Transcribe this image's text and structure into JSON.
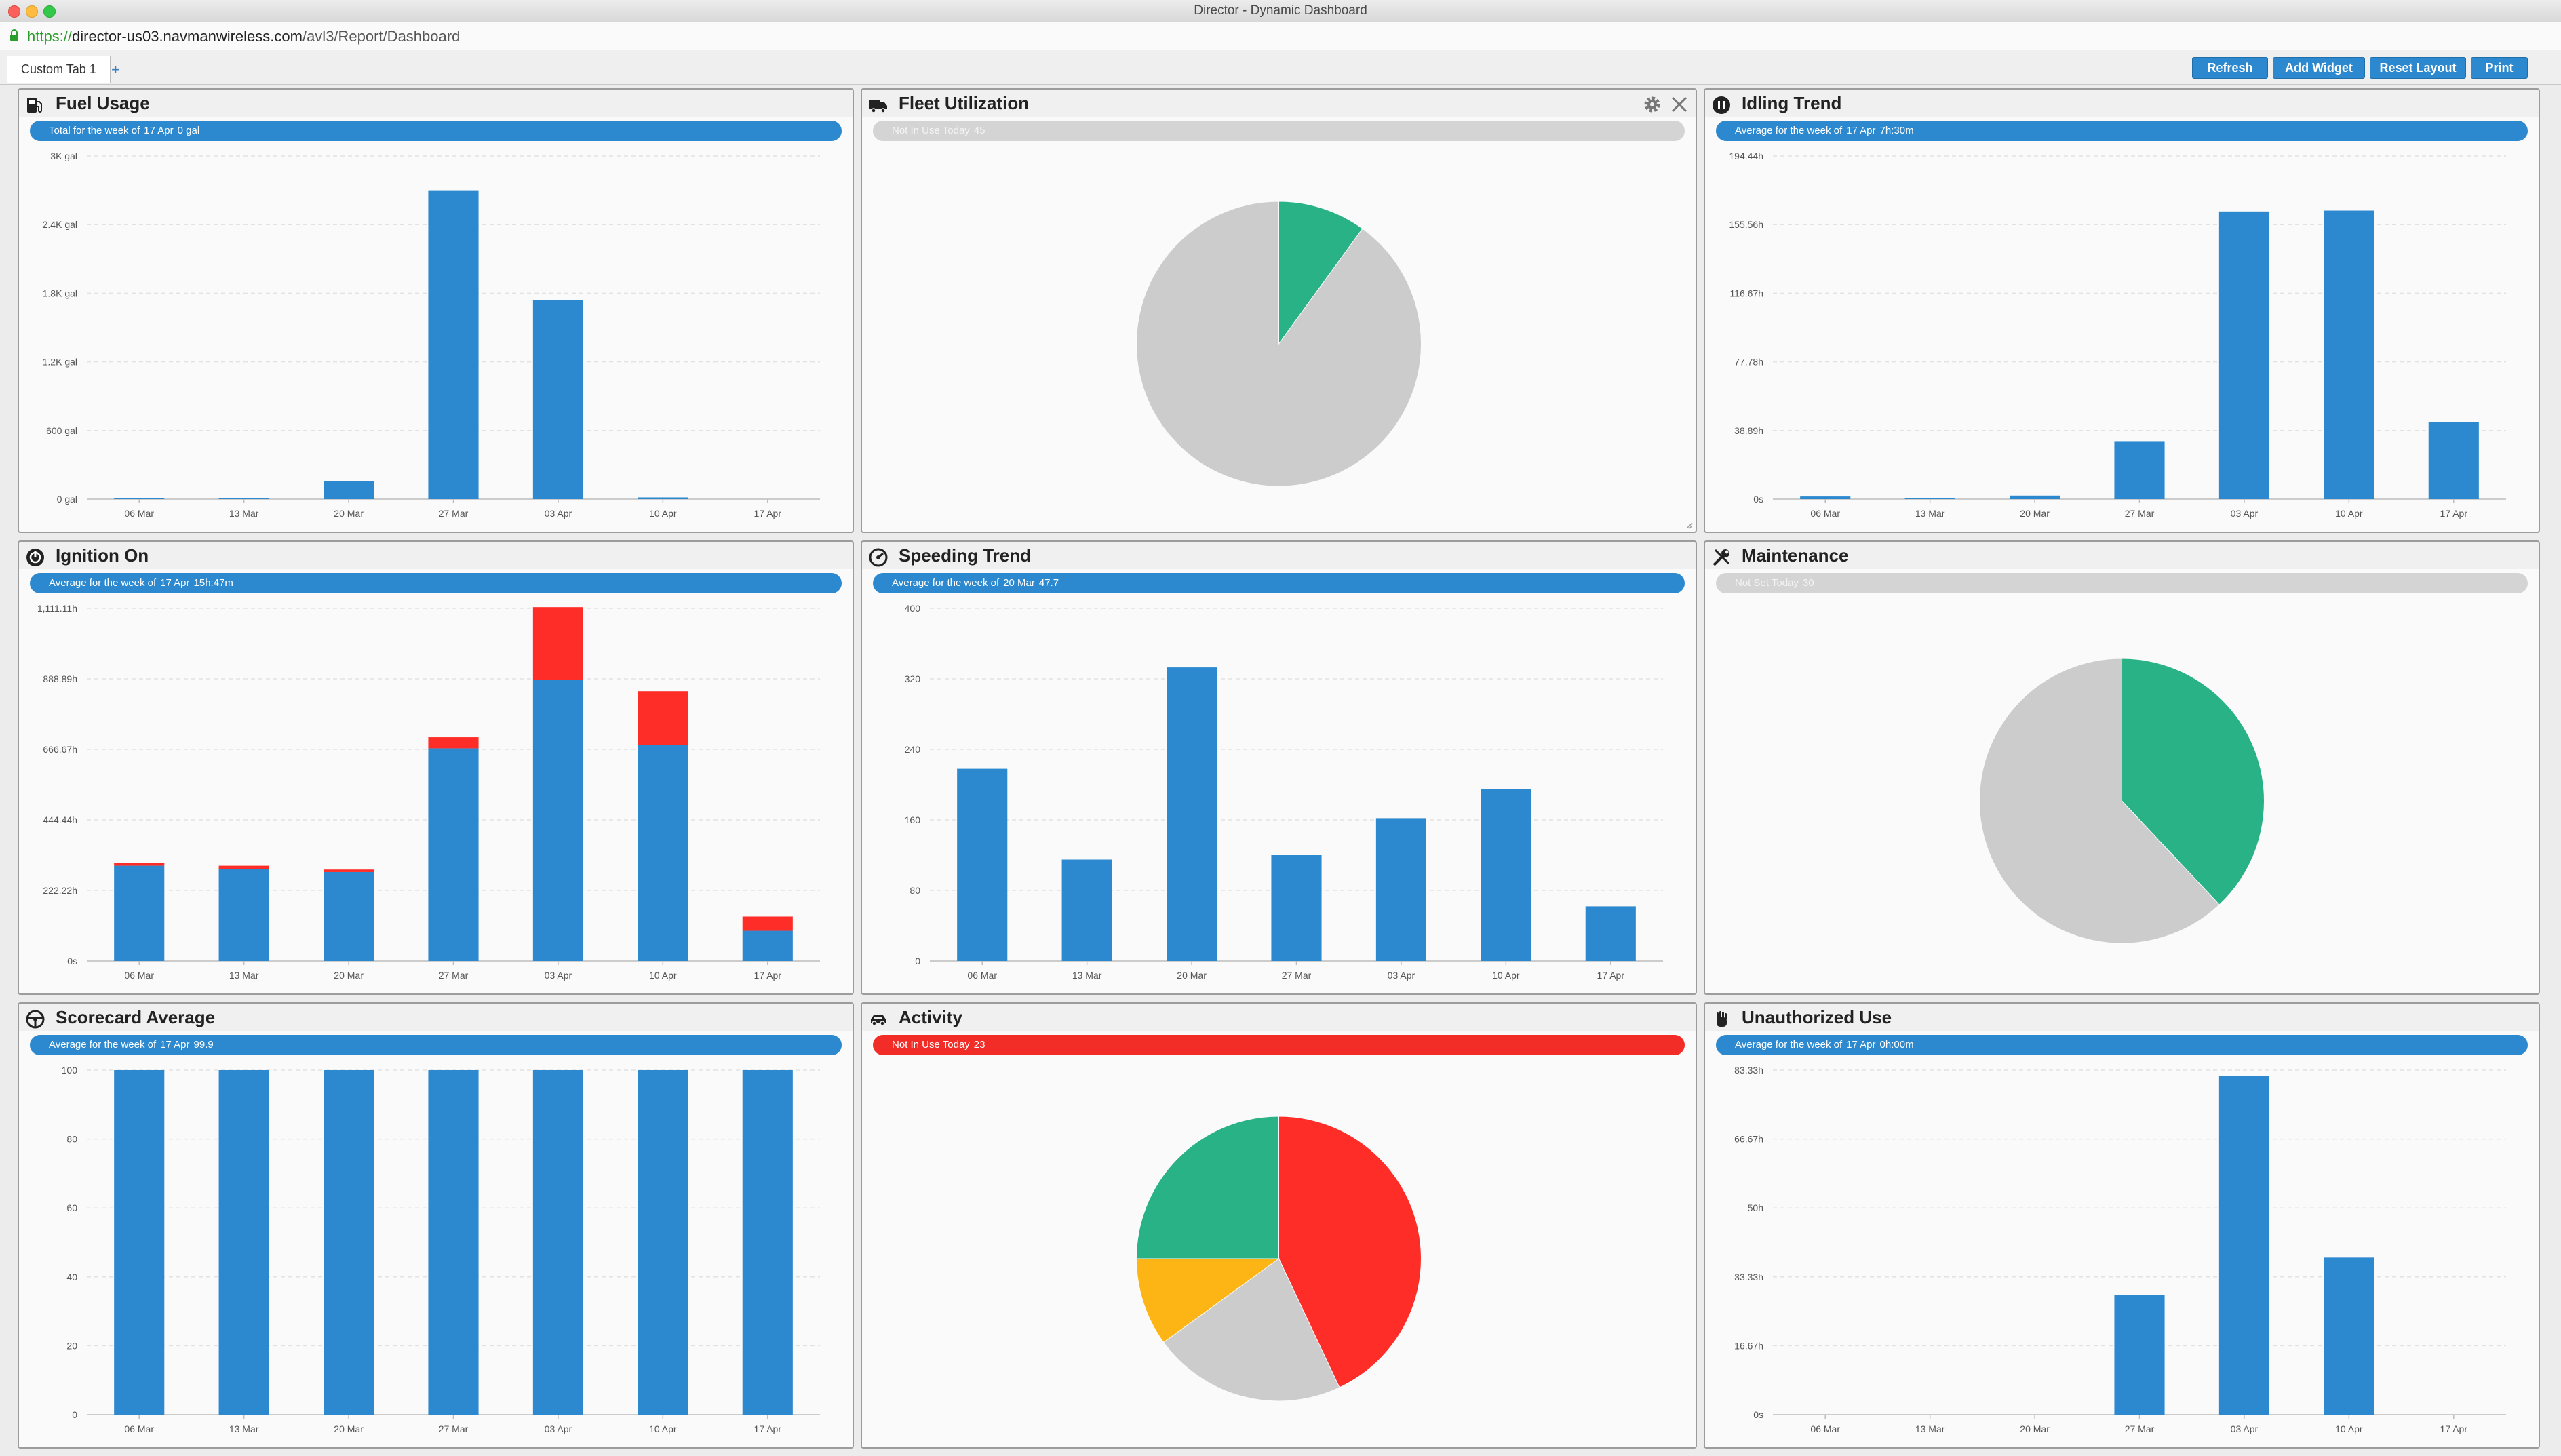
{
  "window": {
    "title": "Director - Dynamic Dashboard"
  },
  "address": {
    "scheme": "https://",
    "host": "director-us03.navmanwireless.com",
    "path": "/avl3/Report/Dashboard"
  },
  "tabs": [
    {
      "label": "Custom Tab 1"
    }
  ],
  "tab_add_label": "+",
  "toolbar": {
    "refresh": "Refresh",
    "add_widget": "Add Widget",
    "reset_layout": "Reset Layout",
    "print": "Print"
  },
  "colors": {
    "blue": "#2c89cf",
    "red": "#ff2d27",
    "green": "#29b286",
    "gray": "#cccccc",
    "orange": "#fdb515"
  },
  "widgets": {
    "fuel": {
      "title": "Fuel Usage",
      "icon": "fuel-pump-icon",
      "status": {
        "label": "Total for the week of",
        "date": "17 Apr",
        "value": "0 gal"
      }
    },
    "fleet": {
      "title": "Fleet Utilization",
      "icon": "truck-icon",
      "status": {
        "label": "Not In Use Today",
        "value": "45"
      }
    },
    "idling": {
      "title": "Idling Trend",
      "icon": "idling-icon",
      "status": {
        "label": "Average for the week of",
        "date": "17 Apr",
        "value": "7h:30m"
      }
    },
    "ignition": {
      "title": "Ignition On",
      "icon": "ignition-icon",
      "status": {
        "label": "Average for the week of",
        "date": "17 Apr",
        "value": "15h:47m"
      }
    },
    "speeding": {
      "title": "Speeding Trend",
      "icon": "speedometer-icon",
      "status": {
        "label": "Average for the week of",
        "date": "20 Mar",
        "value": "47.7"
      }
    },
    "maintenance": {
      "title": "Maintenance",
      "icon": "wrench-screwdriver-icon",
      "status": {
        "label": "Not Set Today",
        "value": "30"
      }
    },
    "scorecard": {
      "title": "Scorecard Average",
      "icon": "steering-wheel-icon",
      "status": {
        "label": "Average for the week of",
        "date": "17 Apr",
        "value": "99.9"
      }
    },
    "activity": {
      "title": "Activity",
      "icon": "car-icon",
      "status": {
        "label": "Not In Use Today",
        "value": "23"
      }
    },
    "unauthorized": {
      "title": "Unauthorized Use",
      "icon": "stop-hand-icon",
      "status": {
        "label": "Average for the week of",
        "date": "17 Apr",
        "value": "0h:00m"
      }
    }
  },
  "chart_data": [
    {
      "id": "fuel",
      "type": "bar",
      "categories": [
        "06 Mar",
        "13 Mar",
        "20 Mar",
        "27 Mar",
        "03 Apr",
        "10 Apr",
        "17 Apr"
      ],
      "values": [
        10,
        6,
        160,
        2700,
        1740,
        15,
        0
      ],
      "ylim": [
        0,
        3000
      ],
      "yticks": [
        "0 gal",
        "600 gal",
        "1.2K gal",
        "1.8K gal",
        "2.4K gal",
        "3K gal"
      ]
    },
    {
      "id": "fleet",
      "type": "pie",
      "slices": [
        {
          "value": 5,
          "color": "#29b286"
        },
        {
          "value": 45,
          "color": "#cccccc"
        }
      ]
    },
    {
      "id": "idling",
      "type": "bar",
      "categories": [
        "06 Mar",
        "13 Mar",
        "20 Mar",
        "27 Mar",
        "03 Apr",
        "10 Apr",
        "17 Apr"
      ],
      "values": [
        1.5,
        0.5,
        2,
        32.5,
        163,
        163.5,
        43.5
      ],
      "ylim": [
        0,
        194.44
      ],
      "yticks": [
        "0s",
        "38.89h",
        "77.78h",
        "116.67h",
        "155.56h",
        "194.44h"
      ]
    },
    {
      "id": "ignition",
      "type": "bar",
      "stacked": true,
      "categories": [
        "06 Mar",
        "13 Mar",
        "20 Mar",
        "27 Mar",
        "03 Apr",
        "10 Apr",
        "17 Apr"
      ],
      "series": [
        {
          "values": [
            300,
            290,
            280,
            670,
            885,
            680,
            95
          ],
          "color": "#2c89cf"
        },
        {
          "values": [
            8,
            10,
            8,
            35,
            230,
            170,
            45
          ],
          "color": "#ff2d27"
        }
      ],
      "ylim": [
        0,
        1111.11
      ],
      "yticks": [
        "0s",
        "222.22h",
        "444.44h",
        "666.67h",
        "888.89h",
        "1,111.11h"
      ]
    },
    {
      "id": "speeding",
      "type": "bar",
      "categories": [
        "06 Mar",
        "13 Mar",
        "20 Mar",
        "27 Mar",
        "03 Apr",
        "10 Apr",
        "17 Apr"
      ],
      "values": [
        218,
        115,
        333,
        120,
        162,
        195,
        62
      ],
      "ylim": [
        0,
        400
      ],
      "yticks": [
        "0",
        "80",
        "160",
        "240",
        "320",
        "400"
      ]
    },
    {
      "id": "maintenance",
      "type": "pie",
      "slices": [
        {
          "value": 11.4,
          "color": "#29b286"
        },
        {
          "value": 18.6,
          "color": "#cccccc"
        }
      ]
    },
    {
      "id": "scorecard",
      "type": "bar",
      "categories": [
        "06 Mar",
        "13 Mar",
        "20 Mar",
        "27 Mar",
        "03 Apr",
        "10 Apr",
        "17 Apr"
      ],
      "values": [
        100,
        100,
        100,
        100,
        100,
        100,
        100
      ],
      "ylim": [
        0,
        100
      ],
      "yticks": [
        "0",
        "20",
        "40",
        "60",
        "80",
        "100"
      ]
    },
    {
      "id": "activity",
      "type": "pie",
      "slices": [
        {
          "value": 43,
          "color": "#ff2d27"
        },
        {
          "value": 22,
          "color": "#cccccc"
        },
        {
          "value": 10,
          "color": "#fdb515"
        },
        {
          "value": 25,
          "color": "#29b286"
        }
      ]
    },
    {
      "id": "unauthorized",
      "type": "bar",
      "categories": [
        "06 Mar",
        "13 Mar",
        "20 Mar",
        "27 Mar",
        "03 Apr",
        "10 Apr",
        "17 Apr"
      ],
      "values": [
        0,
        0,
        0,
        29,
        82,
        38,
        0
      ],
      "ylim": [
        0,
        83.33
      ],
      "yticks": [
        "0s",
        "16.67h",
        "33.33h",
        "50h",
        "66.67h",
        "83.33h"
      ]
    }
  ]
}
